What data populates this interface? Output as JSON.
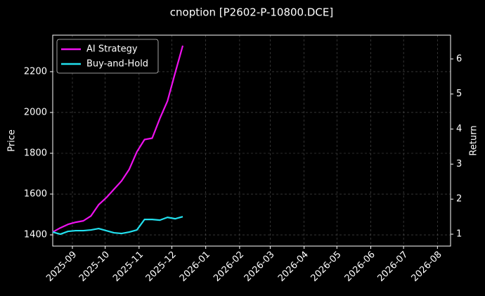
{
  "chart_data": {
    "type": "line",
    "title": "cnoption [P2602-P-10800.DCE]",
    "ylabel": "Price",
    "y2label": "Return",
    "x": [
      "2025-08-14",
      "2025-08-21",
      "2025-08-28",
      "2025-09-04",
      "2025-09-11",
      "2025-09-18",
      "2025-09-25",
      "2025-10-02",
      "2025-10-09",
      "2025-10-16",
      "2025-10-23",
      "2025-10-30",
      "2025-11-06",
      "2025-11-13",
      "2025-11-20",
      "2025-11-27",
      "2025-12-04",
      "2025-12-11"
    ],
    "series": [
      {
        "name": "AI Strategy",
        "color": "#ee11ee",
        "axis": "y2",
        "values": [
          1.06,
          1.18,
          1.28,
          1.34,
          1.38,
          1.52,
          1.84,
          2.04,
          2.28,
          2.52,
          2.85,
          3.35,
          3.7,
          3.74,
          4.3,
          4.8,
          5.6,
          6.38
        ]
      },
      {
        "name": "Buy-and-Hold",
        "color": "#22e0ee",
        "axis": "y2",
        "values": [
          1.06,
          1.0,
          1.08,
          1.1,
          1.1,
          1.12,
          1.16,
          1.1,
          1.04,
          1.02,
          1.06,
          1.12,
          1.42,
          1.42,
          1.4,
          1.48,
          1.44,
          1.5
        ]
      }
    ],
    "xlim": [
      "2025-08-14",
      "2026-08-13"
    ],
    "xticks": [
      "2025-09",
      "2025-10",
      "2025-11",
      "2025-12",
      "2026-01",
      "2026-02",
      "2026-03",
      "2026-04",
      "2026-05",
      "2026-06",
      "2026-07",
      "2026-08"
    ],
    "ylim": [
      1345,
      2379
    ],
    "yticks": [
      1400,
      1600,
      1800,
      2000,
      2200
    ],
    "y2lim": [
      0.66,
      6.68
    ],
    "y2ticks": [
      1,
      2,
      3,
      4,
      5,
      6
    ],
    "grid": true,
    "legend": "upper-left"
  }
}
